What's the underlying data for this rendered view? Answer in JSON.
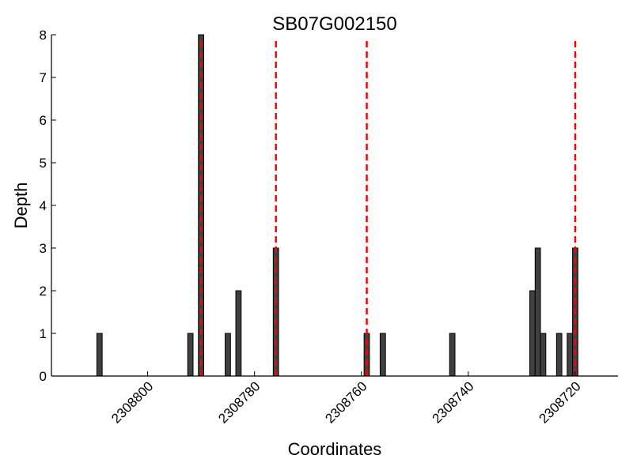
{
  "chart_data": {
    "type": "bar",
    "title": "SB07G002150",
    "xlabel": "Coordinates",
    "ylabel": "Depth",
    "x_reversed": true,
    "xlim": [
      2308818,
      2308712
    ],
    "ylim": [
      0,
      8
    ],
    "yticks": [
      0,
      1,
      2,
      3,
      4,
      5,
      6,
      7,
      8
    ],
    "xticks": [
      2308800,
      2308780,
      2308760,
      2308740,
      2308720
    ],
    "xtick_labels": [
      "2308800",
      "2308780",
      "2308760",
      "2308740",
      "2308720"
    ],
    "bar_width": 1,
    "bars": [
      {
        "x": 2308809,
        "value": 1
      },
      {
        "x": 2308792,
        "value": 1
      },
      {
        "x": 2308790,
        "value": 8
      },
      {
        "x": 2308785,
        "value": 1
      },
      {
        "x": 2308783,
        "value": 2
      },
      {
        "x": 2308776,
        "value": 3
      },
      {
        "x": 2308759,
        "value": 1
      },
      {
        "x": 2308756,
        "value": 1
      },
      {
        "x": 2308743,
        "value": 1
      },
      {
        "x": 2308728,
        "value": 2
      },
      {
        "x": 2308727,
        "value": 3
      },
      {
        "x": 2308726,
        "value": 1
      },
      {
        "x": 2308723,
        "value": 1
      },
      {
        "x": 2308721,
        "value": 1
      },
      {
        "x": 2308720,
        "value": 3
      }
    ],
    "marker_lines": [
      2308790,
      2308776,
      2308759,
      2308720
    ],
    "marker_color": "#ff0000",
    "bar_color": "#404040",
    "grid": false
  }
}
